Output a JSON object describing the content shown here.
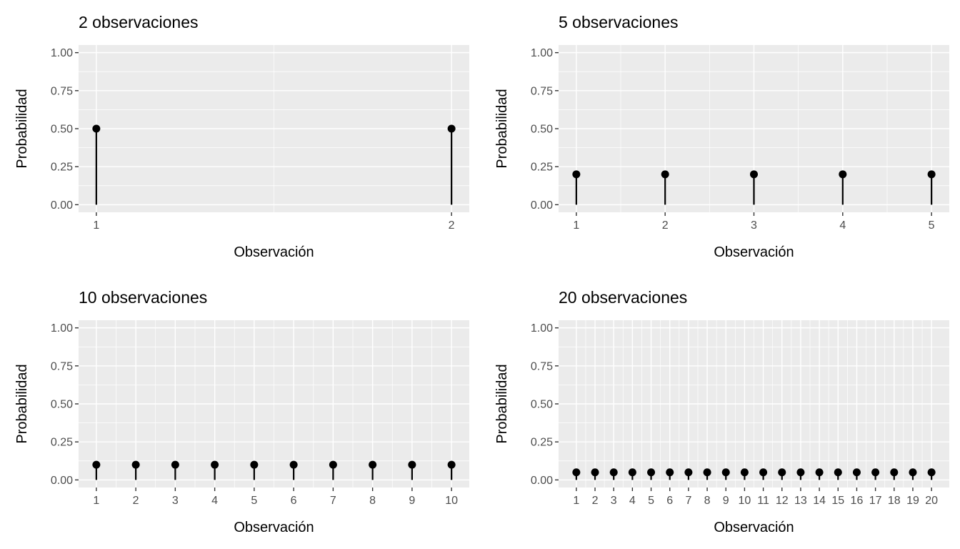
{
  "chart_data": [
    {
      "type": "lollipop",
      "title": "2 observaciones",
      "xlabel": "Observación",
      "ylabel": "Probabilidad",
      "x": [
        1,
        2
      ],
      "y": [
        0.5,
        0.5
      ],
      "ylim": [
        0,
        1
      ],
      "yticks": [
        "0.00",
        "0.25",
        "0.50",
        "0.75",
        "1.00"
      ],
      "grid": true
    },
    {
      "type": "lollipop",
      "title": "5 observaciones",
      "xlabel": "Observación",
      "ylabel": "Probabilidad",
      "x": [
        1,
        2,
        3,
        4,
        5
      ],
      "y": [
        0.2,
        0.2,
        0.2,
        0.2,
        0.2
      ],
      "ylim": [
        0,
        1
      ],
      "yticks": [
        "0.00",
        "0.25",
        "0.50",
        "0.75",
        "1.00"
      ],
      "grid": true
    },
    {
      "type": "lollipop",
      "title": "10 observaciones",
      "xlabel": "Observación",
      "ylabel": "Probabilidad",
      "x": [
        1,
        2,
        3,
        4,
        5,
        6,
        7,
        8,
        9,
        10
      ],
      "y": [
        0.1,
        0.1,
        0.1,
        0.1,
        0.1,
        0.1,
        0.1,
        0.1,
        0.1,
        0.1
      ],
      "ylim": [
        0,
        1
      ],
      "yticks": [
        "0.00",
        "0.25",
        "0.50",
        "0.75",
        "1.00"
      ],
      "grid": true
    },
    {
      "type": "lollipop",
      "title": "20 observaciones",
      "xlabel": "Observación",
      "ylabel": "Probabilidad",
      "x": [
        1,
        2,
        3,
        4,
        5,
        6,
        7,
        8,
        9,
        10,
        11,
        12,
        13,
        14,
        15,
        16,
        17,
        18,
        19,
        20
      ],
      "y": [
        0.05,
        0.05,
        0.05,
        0.05,
        0.05,
        0.05,
        0.05,
        0.05,
        0.05,
        0.05,
        0.05,
        0.05,
        0.05,
        0.05,
        0.05,
        0.05,
        0.05,
        0.05,
        0.05,
        0.05
      ],
      "ylim": [
        0,
        1
      ],
      "yticks": [
        "0.00",
        "0.25",
        "0.50",
        "0.75",
        "1.00"
      ],
      "grid": true
    }
  ],
  "colors": {
    "panel": "#ebebeb",
    "grid": "#ffffff",
    "mark": "#000000"
  }
}
